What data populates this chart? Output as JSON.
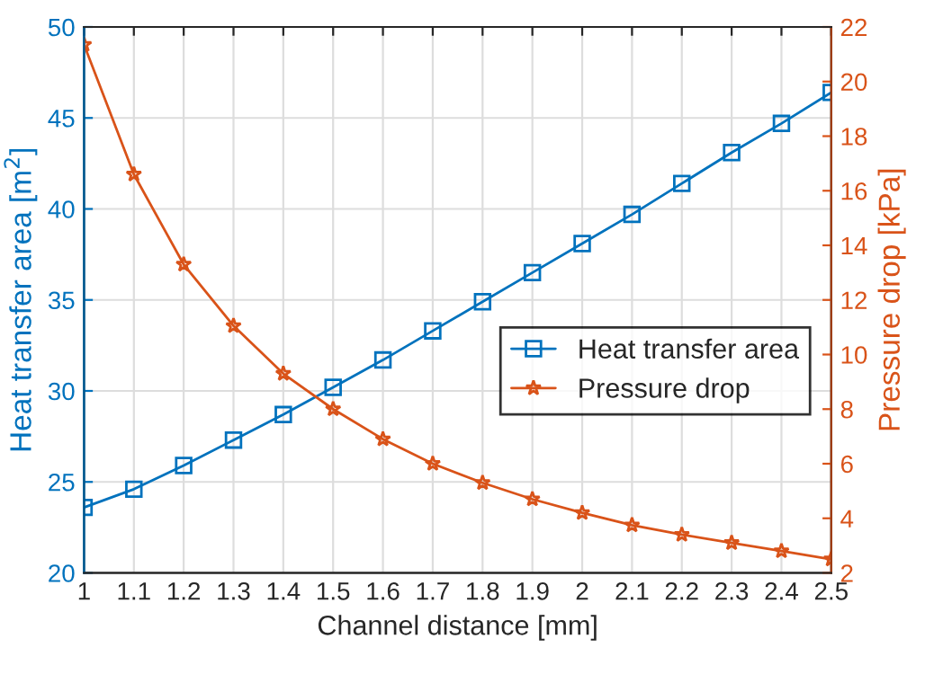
{
  "chart_data": {
    "type": "line",
    "xlabel": "Channel distance [mm]",
    "ylabel": "Heat transfer area [m$^{2}$]",
    "y2label": "Pressure drop [kPa]",
    "x": [
      1,
      1.1,
      1.2,
      1.3,
      1.4,
      1.5,
      1.6,
      1.7,
      1.8,
      1.9,
      2,
      2.1,
      2.2,
      2.3,
      2.4,
      2.5
    ],
    "series": [
      {
        "name": "Heat transfer area",
        "color": "#0072bd",
        "marker": "square",
        "values": [
          23.6,
          24.6,
          25.9,
          27.3,
          28.7,
          30.2,
          31.7,
          33.3,
          34.9,
          36.5,
          38.1,
          39.7,
          41.4,
          43.1,
          44.7,
          46.4
        ]
      },
      {
        "name": "Pressure drop",
        "color": "#d95319",
        "marker": "star",
        "axis": "y2",
        "values": [
          21.35,
          16.6,
          13.3,
          11.05,
          9.3,
          8.0,
          6.9,
          6.0,
          5.3,
          4.7,
          4.2,
          3.75,
          3.4,
          3.1,
          2.8,
          2.5
        ]
      }
    ],
    "xlim": [
      1,
      2.5
    ],
    "xticks": [
      1,
      1.1,
      1.2,
      1.3,
      1.4,
      1.5,
      1.6,
      1.7,
      1.8,
      1.9,
      2,
      2.1,
      2.2,
      2.3,
      2.4,
      2.5
    ],
    "ylim": [
      20,
      50
    ],
    "yticks": [
      20,
      25,
      30,
      35,
      40,
      45,
      50
    ],
    "y2lim": [
      2,
      22
    ],
    "y2ticks": [
      2,
      4,
      6,
      8,
      10,
      12,
      14,
      16,
      18,
      20,
      22
    ],
    "grid": true,
    "legend": "right",
    "line_style": "solid"
  }
}
